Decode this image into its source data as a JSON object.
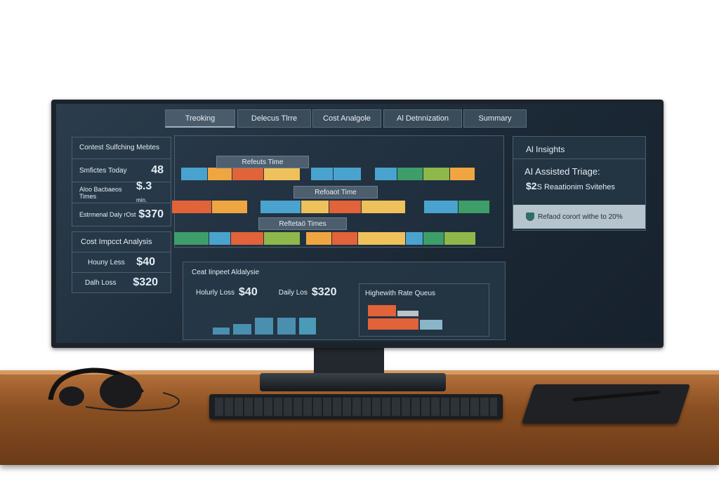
{
  "tabs": [
    {
      "label": "Treoking"
    },
    {
      "label": "Delecus Tlrre"
    },
    {
      "label": "Cost Analgole"
    },
    {
      "label": "Al Detnnization"
    },
    {
      "label": "Summary"
    }
  ],
  "metrics": {
    "title": "Contest Sulfching Mebtes",
    "rows": [
      {
        "label": "Smfictes Today",
        "value": "48"
      },
      {
        "label": "Aloo Bacbaeos Times",
        "value": "$.3",
        "unit": "min."
      },
      {
        "label": "Estrmenal Daly rOst",
        "value": "$370"
      }
    ]
  },
  "cost_left": {
    "title": "Cost Impcct Analysis",
    "rows": [
      {
        "label": "Houny Less",
        "value": "$40"
      },
      {
        "label": "Dalh Loss",
        "value": "$320"
      }
    ]
  },
  "timeline": {
    "labels": [
      "Refeuts Time",
      "Refoaot Time",
      "Reftetaö Times"
    ]
  },
  "cost_bottom": {
    "title": "Ceat Iinpeet Aldalysie",
    "hourly_label": "Holurly Loss",
    "hourly_value": "$40",
    "daily_label": "Daily Los",
    "daily_value": "$320"
  },
  "queues": {
    "title": "Highewith Rate Queus"
  },
  "ai": {
    "title": "Al Insights",
    "heading": "AI Assisted Triage:",
    "value": "$2",
    "text": "S Reaationim Svitehes",
    "banner": "Refaod corort withe to 20%",
    "banner_icon": "shield-check-icon"
  },
  "colors": {
    "blue": "#4aa3cf",
    "orange": "#f0a640",
    "red": "#e2623a",
    "yellow": "#efc15a",
    "green": "#3d9e6a",
    "lime": "#8fb84a"
  }
}
